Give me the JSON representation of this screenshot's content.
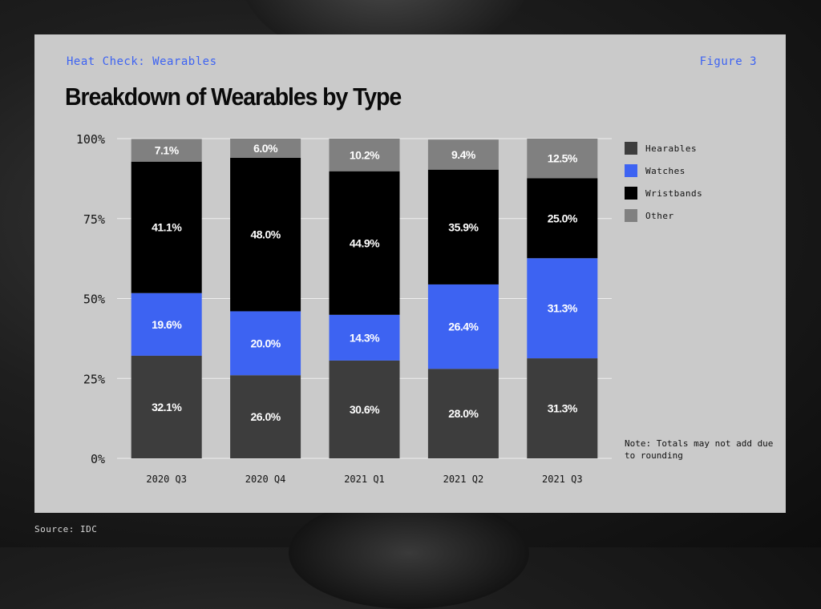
{
  "header": {
    "kicker": "Heat Check: Wearables",
    "figure": "Figure 3",
    "title": "Breakdown of Wearables by Type"
  },
  "chart_data": {
    "type": "bar",
    "stacked": true,
    "title": "Breakdown of Wearables by Type",
    "categories": [
      "2020 Q3",
      "2020 Q4",
      "2021 Q1",
      "2021 Q2",
      "2021 Q3"
    ],
    "series": [
      {
        "name": "Hearables",
        "color": "#3d3d3d",
        "values": [
          32.1,
          26.0,
          30.6,
          28.0,
          31.3
        ],
        "labels": [
          "32.1%",
          "26.0%",
          "30.6%",
          "28.0%",
          "31.3%"
        ]
      },
      {
        "name": "Watches",
        "color": "#3d63f2",
        "values": [
          19.6,
          20.0,
          14.3,
          26.4,
          31.3
        ],
        "labels": [
          "19.6%",
          "20.0%",
          "14.3%",
          "26.4%",
          "31.3%"
        ]
      },
      {
        "name": "Wristbands",
        "color": "#000000",
        "values": [
          41.1,
          48.0,
          44.9,
          35.9,
          25.0
        ],
        "labels": [
          "41.1%",
          "48.0%",
          "44.9%",
          "35.9%",
          "25.0%"
        ]
      },
      {
        "name": "Other",
        "color": "#808080",
        "values": [
          7.1,
          6.0,
          10.2,
          9.4,
          12.5
        ],
        "labels": [
          "7.1%",
          "6.0%",
          "10.2%",
          "9.4%",
          "12.5%"
        ]
      }
    ],
    "y_ticks": [
      "0%",
      "25%",
      "50%",
      "75%",
      "100%"
    ],
    "ylim": [
      0,
      100
    ],
    "grid": true,
    "legend": "right"
  },
  "legend": [
    {
      "label": "Hearables",
      "color": "#3d3d3d"
    },
    {
      "label": "Watches",
      "color": "#3d63f2"
    },
    {
      "label": "Wristbands",
      "color": "#000000"
    },
    {
      "label": "Other",
      "color": "#808080"
    }
  ],
  "note": "Note: Totals may not add due to rounding",
  "source": "Source: IDC"
}
